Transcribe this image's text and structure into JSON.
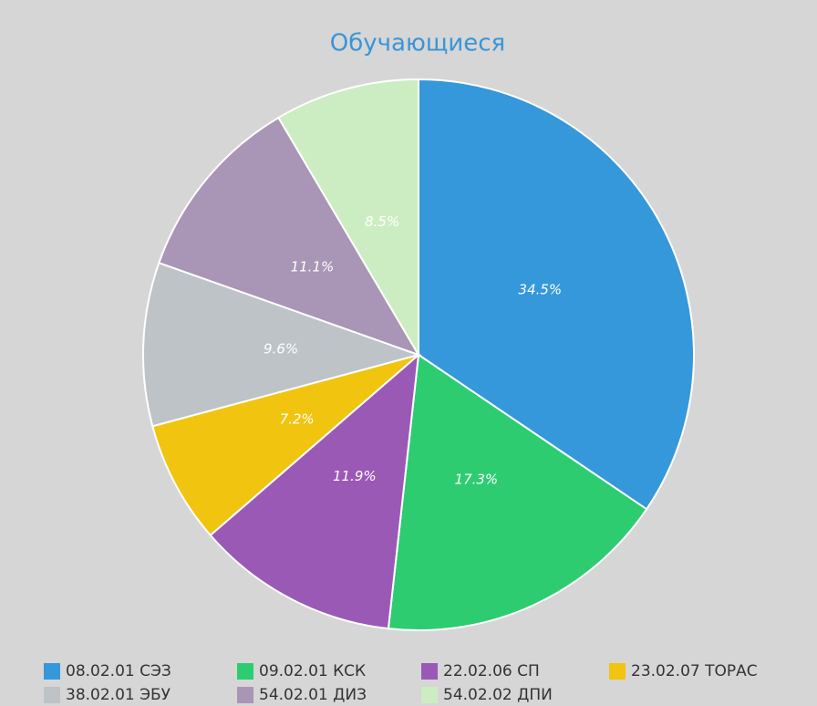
{
  "chart_data": {
    "type": "pie",
    "title": "Обучающиеся",
    "categories": [
      "08.02.01 СЭЗ",
      "09.02.01 КСК",
      "22.02.06 СП",
      "23.02.07 ТОРАС",
      "38.02.01 ЭБУ",
      "54.02.01 ДИЗ",
      "54.02.02 ДПИ"
    ],
    "values": [
      34.5,
      17.3,
      11.9,
      7.2,
      9.6,
      11.1,
      8.5
    ],
    "value_labels": [
      "34.5%",
      "17.3%",
      "11.9%",
      "7.2%",
      "9.6%",
      "11.1%",
      "8.5%"
    ],
    "colors": [
      "#3498db",
      "#2ecc71",
      "#9b59b6",
      "#f1c40f",
      "#bdc3c7",
      "#a995b5",
      "#ccedc2"
    ],
    "legend": "bottom"
  }
}
